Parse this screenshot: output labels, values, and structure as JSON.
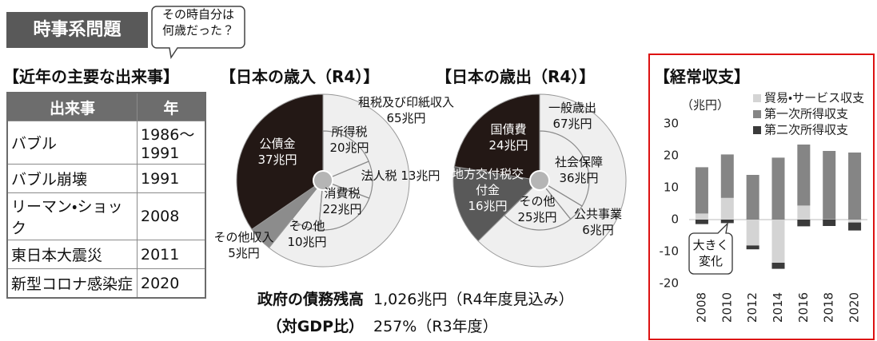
{
  "header": {
    "title": "時事系問題",
    "bubble": "その時自分は何歳だった？"
  },
  "events": {
    "title": "【近年の主要な出来事】",
    "columns": [
      "出来事",
      "年"
    ],
    "rows": [
      [
        "バブル",
        "1986～1991"
      ],
      [
        "バブル崩壊",
        "1991"
      ],
      [
        "リーマン・ショック",
        "2008"
      ],
      [
        "東日本大震災",
        "2011"
      ],
      [
        "新型コロナ感染症",
        "2020"
      ]
    ]
  },
  "chart_data": [
    {
      "type": "donut",
      "title": "【日本の歳入（R4）】",
      "categories": [
        "租税及び印紙収入",
        "その他収入",
        "公債金"
      ],
      "values": [
        65,
        5,
        37
      ],
      "value_labels": [
        "65兆円",
        "5兆円",
        "37兆円"
      ],
      "colors": [
        "#efefef",
        "#8c8c8c",
        "#231815"
      ],
      "breakdown": {
        "categories": [
          "所得税",
          "法人税",
          "消費税",
          "その他"
        ],
        "values": [
          20,
          13,
          22,
          10
        ],
        "value_labels": [
          "20兆円",
          "13兆円",
          "22兆円",
          "10兆円"
        ]
      }
    },
    {
      "type": "donut",
      "title": "【日本の歳出（R4）】",
      "categories": [
        "一般歳出",
        "地方交付税交付金",
        "国債費"
      ],
      "values": [
        67,
        16,
        24
      ],
      "value_labels": [
        "67兆円",
        "16兆円",
        "24兆円"
      ],
      "colors": [
        "#efefef",
        "#595959",
        "#231815"
      ],
      "breakdown": {
        "categories": [
          "社会保障",
          "公共事業",
          "その他"
        ],
        "values": [
          36,
          6,
          25
        ],
        "value_labels": [
          "36兆円",
          "6兆円",
          "25兆円"
        ]
      }
    },
    {
      "type": "bar",
      "stacked": true,
      "title": "【経常収支】",
      "ylabel": "（兆円）",
      "categories": [
        "2008",
        "2010",
        "2012",
        "2014",
        "2016",
        "2018",
        "2020"
      ],
      "series": [
        {
          "name": "貿易・サービス収支",
          "color": "#d4d4d4",
          "values": [
            1.9,
            6.8,
            -8.1,
            -13.5,
            4.4,
            0.1,
            -0.9
          ]
        },
        {
          "name": "第一次所得収支",
          "color": "#858585",
          "values": [
            14.5,
            13.6,
            14.0,
            19.4,
            19.1,
            21.4,
            21.0
          ]
        },
        {
          "name": "第二次所得収支",
          "color": "#3a3a3a",
          "values": [
            -1.4,
            -1.1,
            -1.2,
            -1.9,
            -2.1,
            -2.0,
            -2.5
          ]
        }
      ],
      "ylim": [
        -20,
        30
      ],
      "yticks": [
        -20,
        -10,
        0,
        10,
        20,
        30
      ],
      "legend": "upper right",
      "annotation": "大きく変化"
    }
  ],
  "debt": {
    "label": "政府の債務残高",
    "value": "1,026兆円（R4年度見込み）",
    "ratio_label": "（対GDP比）",
    "ratio": "257%（R3年度）"
  }
}
